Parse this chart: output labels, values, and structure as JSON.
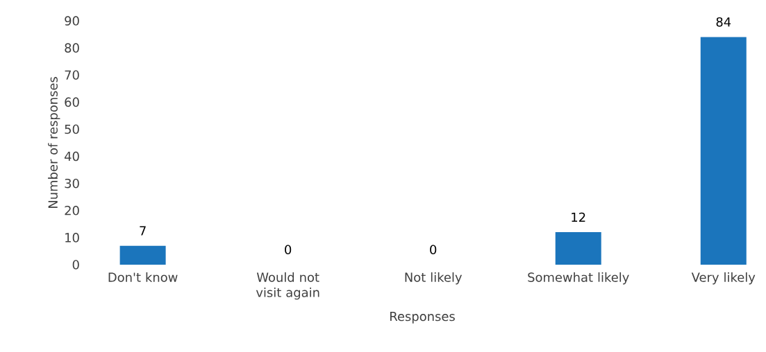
{
  "chart_data": {
    "type": "bar",
    "xlabel": "Responses",
    "ylabel": "Number of responses",
    "categories": [
      "Don't know",
      "Would not visit again",
      "Not likely",
      "Somewhat likely",
      "Very likely"
    ],
    "values": [
      7,
      0,
      0,
      12,
      84
    ],
    "color": "#1b75bc",
    "ylim": [
      0,
      90
    ],
    "yticks": [
      0,
      10,
      20,
      30,
      40,
      50,
      60,
      70,
      80,
      90
    ],
    "data_labels": true
  }
}
